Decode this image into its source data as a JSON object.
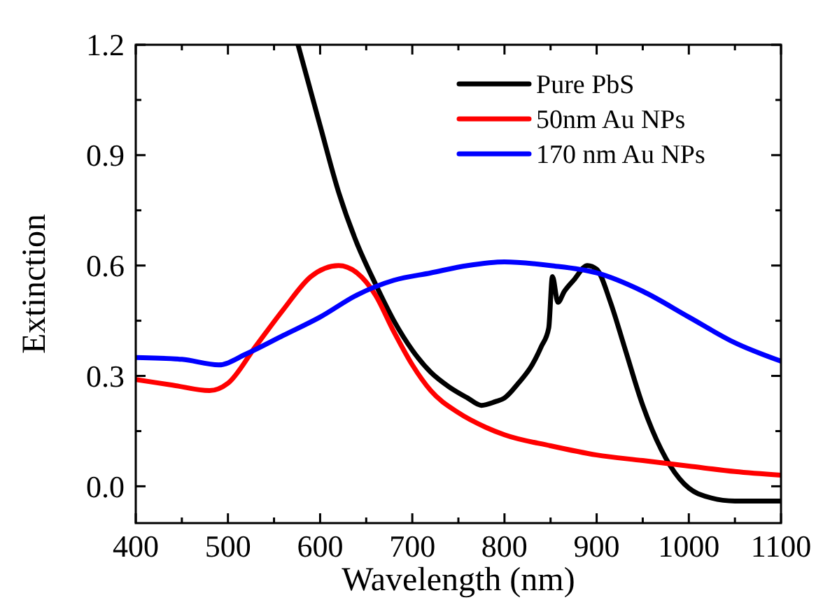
{
  "chart_data": {
    "type": "line",
    "xlabel": "Wavelength (nm)",
    "ylabel": "Extinction",
    "xlim": [
      400,
      1100
    ],
    "ylim": [
      -0.1,
      1.2
    ],
    "xticks": [
      400,
      {
        "value": 450,
        "label": null
      },
      500,
      {
        "value": 550,
        "label": null
      },
      600,
      {
        "value": 650,
        "label": null
      },
      700,
      {
        "value": 750,
        "label": null
      },
      800,
      {
        "value": 850,
        "label": null
      },
      900,
      {
        "value": 950,
        "label": null
      },
      1000,
      {
        "value": 1050,
        "label": null
      },
      1100
    ],
    "yticks": [
      {
        "value": 0,
        "label": "0.0"
      },
      {
        "value": 0.15,
        "label": null
      },
      0.3,
      {
        "value": 0.45,
        "label": null
      },
      0.6,
      {
        "value": 0.75,
        "label": null
      },
      0.9,
      {
        "value": 1.05,
        "label": null
      },
      1.2
    ],
    "legend": "top right",
    "grid": false,
    "line_style": "solid",
    "series": [
      {
        "name": "Pure PbS",
        "color": "#000000",
        "x": [
          576,
          600,
          620,
          640,
          660,
          680,
          700,
          720,
          740,
          760,
          775,
          790,
          800,
          815,
          830,
          840,
          848,
          852,
          858,
          865,
          875,
          890,
          900,
          915,
          930,
          950,
          970,
          990,
          1010,
          1050,
          1100
        ],
        "values": [
          1.2,
          0.98,
          0.8,
          0.66,
          0.55,
          0.45,
          0.37,
          0.31,
          0.27,
          0.24,
          0.22,
          0.23,
          0.24,
          0.28,
          0.33,
          0.38,
          0.43,
          0.57,
          0.5,
          0.53,
          0.56,
          0.6,
          0.59,
          0.5,
          0.38,
          0.22,
          0.1,
          0.02,
          -0.02,
          -0.04,
          -0.04
        ]
      },
      {
        "name": "50nm Au NPs",
        "color": "#ff0000",
        "x": [
          400,
          440,
          480,
          500,
          530,
          560,
          590,
          620,
          640,
          660,
          680,
          700,
          720,
          750,
          780,
          800,
          850,
          900,
          950,
          1000,
          1050,
          1100
        ],
        "values": [
          0.29,
          0.275,
          0.26,
          0.28,
          0.38,
          0.48,
          0.57,
          0.6,
          0.58,
          0.52,
          0.42,
          0.33,
          0.26,
          0.2,
          0.16,
          0.14,
          0.11,
          0.085,
          0.07,
          0.055,
          0.04,
          0.03
        ]
      },
      {
        "name": "170 nm Au NPs",
        "color": "#0000ff",
        "x": [
          400,
          450,
          490,
          520,
          560,
          600,
          640,
          680,
          720,
          760,
          800,
          850,
          900,
          950,
          1000,
          1050,
          1100
        ],
        "values": [
          0.35,
          0.345,
          0.33,
          0.36,
          0.41,
          0.46,
          0.52,
          0.56,
          0.58,
          0.6,
          0.61,
          0.6,
          0.58,
          0.53,
          0.46,
          0.39,
          0.34
        ]
      }
    ]
  }
}
